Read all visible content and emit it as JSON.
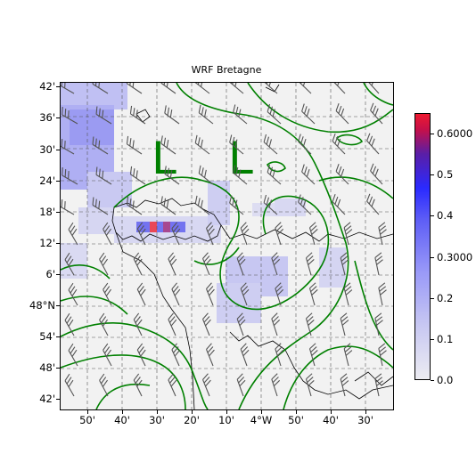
{
  "title": "WRF Bretagne",
  "lat_labels": [
    "42'",
    "36'",
    "30'",
    "24'",
    "18'",
    "12'",
    "6'",
    "48°N",
    "54'",
    "48'",
    "42'"
  ],
  "lon_labels": [
    "50'",
    "40'",
    "30'",
    "20'",
    "10'",
    "4°W",
    "50'",
    "40'",
    "30'"
  ],
  "pressure_labels": [
    "L",
    "L"
  ],
  "colorbar": {
    "labels": [
      "0.6000",
      "0.5",
      "0.4",
      "0.3000",
      "0.2",
      "0.1",
      "0.0"
    ],
    "min": 0.0,
    "max": 0.65
  },
  "colors": {
    "contour": "#008000",
    "coastline": "#000000",
    "precip_low": "#c8c8f2",
    "precip_mid": "#6a6af0",
    "precip_high": "#ee1a30",
    "barb": "#555555"
  }
}
